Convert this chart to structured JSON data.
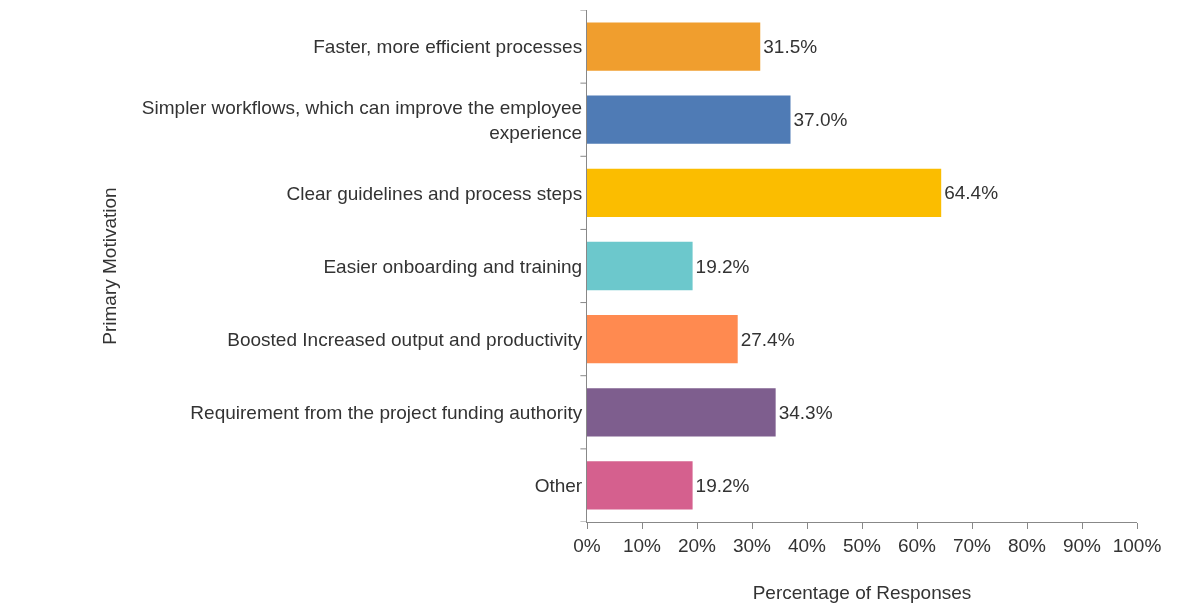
{
  "chart_data": {
    "type": "bar",
    "orientation": "horizontal",
    "xlabel": "Percentage of Responses",
    "ylabel": "Primary Motivation",
    "categories": [
      "Faster, more efficient processes",
      "Simpler workflows, which can improve the employee experience",
      "Clear guidelines and process steps",
      "Easier onboarding and training",
      "Boosted Increased output and productivity",
      "Requirement from the project funding authority",
      "Other"
    ],
    "values": [
      31.5,
      37.0,
      64.4,
      19.2,
      27.4,
      34.3,
      19.2
    ],
    "value_labels": [
      "31.5%",
      "37.0%",
      "64.4%",
      "19.2%",
      "27.4%",
      "34.3%",
      "19.2%"
    ],
    "colors": [
      "#f09e2e",
      "#4f7bb5",
      "#fbbd00",
      "#6cc8cc",
      "#ff8a50",
      "#7e5e8e",
      "#d5608e"
    ],
    "xlim": [
      0,
      100
    ],
    "xticks": [
      {
        "value": 0,
        "label": "0%"
      },
      {
        "value": 10,
        "label": "10%"
      },
      {
        "value": 20,
        "label": "20%"
      },
      {
        "value": 30,
        "label": "30%"
      },
      {
        "value": 40,
        "label": "40%"
      },
      {
        "value": 50,
        "label": "50%"
      },
      {
        "value": 60,
        "label": "60%"
      },
      {
        "value": 70,
        "label": "70%"
      },
      {
        "value": 80,
        "label": "80%"
      },
      {
        "value": 90,
        "label": "90%"
      },
      {
        "value": 100,
        "label": "100%"
      }
    ]
  }
}
